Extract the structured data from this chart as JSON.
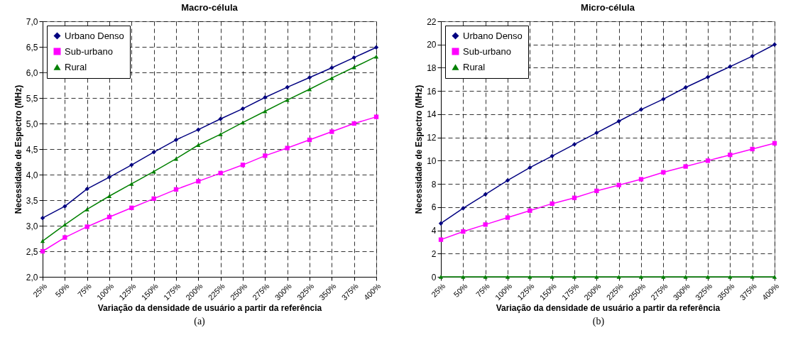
{
  "chart_data": [
    {
      "type": "line",
      "title": "Macro-célula",
      "xlabel": "Variação da densidade de usuário a partir da referência",
      "ylabel": "Necessidade de Espectro (MHz)",
      "categories": [
        "25%",
        "50%",
        "75%",
        "100%",
        "125%",
        "150%",
        "175%",
        "200%",
        "225%",
        "250%",
        "275%",
        "300%",
        "325%",
        "350%",
        "375%",
        "400%"
      ],
      "series": [
        {
          "name": "Urbano Denso",
          "color": "#000080",
          "marker": "diamond",
          "values": [
            3.15,
            3.38,
            3.72,
            3.95,
            4.19,
            4.44,
            4.68,
            4.88,
            5.09,
            5.29,
            5.51,
            5.71,
            5.9,
            6.09,
            6.29,
            6.49
          ]
        },
        {
          "name": "Sub-urbano",
          "color": "#ff00ff",
          "marker": "square",
          "values": [
            2.5,
            2.77,
            2.98,
            3.17,
            3.35,
            3.53,
            3.71,
            3.87,
            4.03,
            4.19,
            4.37,
            4.52,
            4.68,
            4.84,
            5.0,
            5.13
          ]
        },
        {
          "name": "Rural",
          "color": "#008000",
          "marker": "triangle",
          "values": [
            2.7,
            3.02,
            3.32,
            3.58,
            3.82,
            4.06,
            4.31,
            4.58,
            4.79,
            5.02,
            5.24,
            5.46,
            5.67,
            5.89,
            6.1,
            6.31
          ]
        }
      ],
      "ylim": [
        2,
        7
      ],
      "yticks": [
        {
          "value": 2,
          "label": "2,0"
        },
        {
          "value": 2.5,
          "label": "2,5"
        },
        {
          "value": 3,
          "label": "3,0"
        },
        {
          "value": 3.5,
          "label": "3,5"
        },
        {
          "value": 4,
          "label": "4,0"
        },
        {
          "value": 4.5,
          "label": "4,5"
        },
        {
          "value": 5,
          "label": "5,0"
        },
        {
          "value": 5.5,
          "label": "5,5"
        },
        {
          "value": 6,
          "label": "6,0"
        },
        {
          "value": 6.5,
          "label": "6,5"
        },
        {
          "value": 7,
          "label": "7,0"
        }
      ],
      "grid": true,
      "legend": "top left",
      "line_style": "solid",
      "annotations": [
        "(a)"
      ]
    },
    {
      "type": "line",
      "title": "Micro-célula",
      "xlabel": "Variação da densidade de usuário a partir da referência",
      "ylabel": "Necessidade de Espectro (MHz)",
      "categories": [
        "25%",
        "50%",
        "75%",
        "100%",
        "125%",
        "150%",
        "175%",
        "200%",
        "225%",
        "250%",
        "275%",
        "300%",
        "325%",
        "350%",
        "375%",
        "400%"
      ],
      "series": [
        {
          "name": "Urbano Denso",
          "color": "#000080",
          "marker": "diamond",
          "values": [
            4.6,
            5.9,
            7.1,
            8.3,
            9.4,
            10.4,
            11.4,
            12.4,
            13.4,
            14.4,
            15.3,
            16.3,
            17.2,
            18.1,
            19.0,
            20.0
          ]
        },
        {
          "name": "Sub-urbano",
          "color": "#ff00ff",
          "marker": "square",
          "values": [
            3.2,
            3.9,
            4.5,
            5.1,
            5.7,
            6.3,
            6.8,
            7.4,
            7.9,
            8.4,
            9.0,
            9.5,
            10.0,
            10.5,
            11.0,
            11.5
          ]
        },
        {
          "name": "Rural",
          "color": "#008000",
          "marker": "triangle",
          "values": [
            0,
            0,
            0,
            0,
            0,
            0,
            0,
            0,
            0,
            0,
            0,
            0,
            0,
            0,
            0,
            0
          ]
        }
      ],
      "ylim": [
        0,
        22
      ],
      "yticks": [
        0,
        2,
        4,
        6,
        8,
        10,
        12,
        14,
        16,
        18,
        20,
        22
      ],
      "grid": true,
      "legend": "top left",
      "line_style": "solid",
      "annotations": [
        "(b)"
      ]
    }
  ]
}
